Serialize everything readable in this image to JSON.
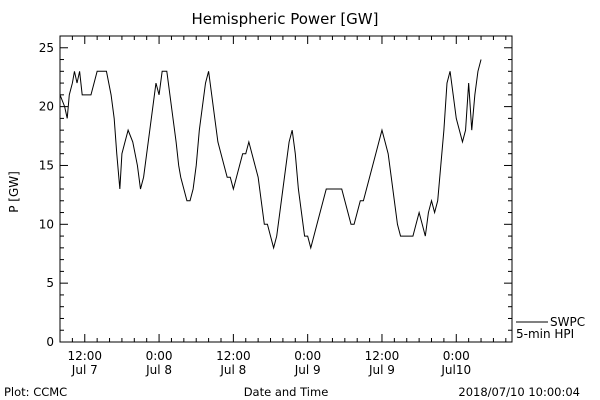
{
  "chart_data": {
    "type": "line",
    "title": "Hemispheric Power [GW]",
    "xlabel": "Date and Time",
    "ylabel": "P [GW]",
    "xlim": [
      "2018-07-07T08:00",
      "2018-07-10T09:00"
    ],
    "ylim": [
      0,
      26
    ],
    "y_ticks": [
      0,
      5,
      10,
      15,
      20,
      25
    ],
    "y_tick_labels": [
      "0",
      "5",
      "10",
      "15",
      "20",
      "25"
    ],
    "x_ticks": [
      {
        "time": "2018-07-07T12:00",
        "line1": "12:00",
        "line2": "Jul 7"
      },
      {
        "time": "2018-07-08T00:00",
        "line1": "0:00",
        "line2": "Jul 8"
      },
      {
        "time": "2018-07-08T12:00",
        "line1": "12:00",
        "line2": "Jul 8"
      },
      {
        "time": "2018-07-09T00:00",
        "line1": "0:00",
        "line2": "Jul 9"
      },
      {
        "time": "2018-07-09T12:00",
        "line1": "12:00",
        "line2": "Jul 9"
      },
      {
        "time": "2018-07-10T00:00",
        "line1": "0:00",
        "line2": "Jul10"
      }
    ],
    "grid": false,
    "legend_position": "right",
    "series": [
      {
        "name": "SWPC",
        "color": "#000000",
        "points": [
          [
            "2018-07-07T08:00",
            21
          ],
          [
            "2018-07-07T08:45",
            20
          ],
          [
            "2018-07-07T09:10",
            19
          ],
          [
            "2018-07-07T09:30",
            21
          ],
          [
            "2018-07-07T10:00",
            22
          ],
          [
            "2018-07-07T10:20",
            23
          ],
          [
            "2018-07-07T10:45",
            22
          ],
          [
            "2018-07-07T11:10",
            23
          ],
          [
            "2018-07-07T11:35",
            21
          ],
          [
            "2018-07-07T13:00",
            21
          ],
          [
            "2018-07-07T13:30",
            22
          ],
          [
            "2018-07-07T14:00",
            23
          ],
          [
            "2018-07-07T15:30",
            23
          ],
          [
            "2018-07-07T16:15",
            21
          ],
          [
            "2018-07-07T16:45",
            19
          ],
          [
            "2018-07-07T17:10",
            16
          ],
          [
            "2018-07-07T17:40",
            13
          ],
          [
            "2018-07-07T18:00",
            16
          ],
          [
            "2018-07-07T18:30",
            17
          ],
          [
            "2018-07-07T19:00",
            18
          ],
          [
            "2018-07-07T19:45",
            17
          ],
          [
            "2018-07-07T20:30",
            15
          ],
          [
            "2018-07-07T21:00",
            13
          ],
          [
            "2018-07-07T21:30",
            14
          ],
          [
            "2018-07-07T22:00",
            16
          ],
          [
            "2018-07-07T22:30",
            18
          ],
          [
            "2018-07-07T23:00",
            20
          ],
          [
            "2018-07-07T23:30",
            22
          ],
          [
            "2018-07-08T00:00",
            21
          ],
          [
            "2018-07-08T00:30",
            23
          ],
          [
            "2018-07-08T01:15",
            23
          ],
          [
            "2018-07-08T01:45",
            21
          ],
          [
            "2018-07-08T02:15",
            19
          ],
          [
            "2018-07-08T02:45",
            17
          ],
          [
            "2018-07-08T03:10",
            15
          ],
          [
            "2018-07-08T03:30",
            14
          ],
          [
            "2018-07-08T04:00",
            13
          ],
          [
            "2018-07-08T04:30",
            12
          ],
          [
            "2018-07-08T05:00",
            12
          ],
          [
            "2018-07-08T05:30",
            13
          ],
          [
            "2018-07-08T06:00",
            15
          ],
          [
            "2018-07-08T06:30",
            18
          ],
          [
            "2018-07-08T07:00",
            20
          ],
          [
            "2018-07-08T07:30",
            22
          ],
          [
            "2018-07-08T08:00",
            23
          ],
          [
            "2018-07-08T08:30",
            21
          ],
          [
            "2018-07-08T09:00",
            19
          ],
          [
            "2018-07-08T09:30",
            17
          ],
          [
            "2018-07-08T10:00",
            16
          ],
          [
            "2018-07-08T10:30",
            15
          ],
          [
            "2018-07-08T11:00",
            14
          ],
          [
            "2018-07-08T11:30",
            14
          ],
          [
            "2018-07-08T12:00",
            13
          ],
          [
            "2018-07-08T12:30",
            14
          ],
          [
            "2018-07-08T13:00",
            15
          ],
          [
            "2018-07-08T13:30",
            16
          ],
          [
            "2018-07-08T14:00",
            16
          ],
          [
            "2018-07-08T14:30",
            17
          ],
          [
            "2018-07-08T15:00",
            16
          ],
          [
            "2018-07-08T15:30",
            15
          ],
          [
            "2018-07-08T16:00",
            14
          ],
          [
            "2018-07-08T16:30",
            12
          ],
          [
            "2018-07-08T17:00",
            10
          ],
          [
            "2018-07-08T17:30",
            10
          ],
          [
            "2018-07-08T18:00",
            9
          ],
          [
            "2018-07-08T18:30",
            8
          ],
          [
            "2018-07-08T19:00",
            9
          ],
          [
            "2018-07-08T19:30",
            11
          ],
          [
            "2018-07-08T20:00",
            13
          ],
          [
            "2018-07-08T20:30",
            15
          ],
          [
            "2018-07-08T21:00",
            17
          ],
          [
            "2018-07-08T21:30",
            18
          ],
          [
            "2018-07-08T22:00",
            16
          ],
          [
            "2018-07-08T22:30",
            13
          ],
          [
            "2018-07-08T23:00",
            11
          ],
          [
            "2018-07-08T23:30",
            9
          ],
          [
            "2018-07-09T00:00",
            9
          ],
          [
            "2018-07-09T00:30",
            8
          ],
          [
            "2018-07-09T01:00",
            9
          ],
          [
            "2018-07-09T01:30",
            10
          ],
          [
            "2018-07-09T02:00",
            11
          ],
          [
            "2018-07-09T02:30",
            12
          ],
          [
            "2018-07-09T03:00",
            13
          ],
          [
            "2018-07-09T03:30",
            13
          ],
          [
            "2018-07-09T04:30",
            13
          ],
          [
            "2018-07-09T05:30",
            13
          ],
          [
            "2018-07-09T06:00",
            12
          ],
          [
            "2018-07-09T06:30",
            11
          ],
          [
            "2018-07-09T07:00",
            10
          ],
          [
            "2018-07-09T07:30",
            10
          ],
          [
            "2018-07-09T08:00",
            11
          ],
          [
            "2018-07-09T08:30",
            12
          ],
          [
            "2018-07-09T09:00",
            12
          ],
          [
            "2018-07-09T09:30",
            13
          ],
          [
            "2018-07-09T10:00",
            14
          ],
          [
            "2018-07-09T10:30",
            15
          ],
          [
            "2018-07-09T11:00",
            16
          ],
          [
            "2018-07-09T11:30",
            17
          ],
          [
            "2018-07-09T12:00",
            18
          ],
          [
            "2018-07-09T12:30",
            17
          ],
          [
            "2018-07-09T13:00",
            16
          ],
          [
            "2018-07-09T13:30",
            14
          ],
          [
            "2018-07-09T14:00",
            12
          ],
          [
            "2018-07-09T14:30",
            10
          ],
          [
            "2018-07-09T15:00",
            9
          ],
          [
            "2018-07-09T17:00",
            9
          ],
          [
            "2018-07-09T17:30",
            10
          ],
          [
            "2018-07-09T18:00",
            11
          ],
          [
            "2018-07-09T18:30",
            10
          ],
          [
            "2018-07-09T19:00",
            9
          ],
          [
            "2018-07-09T19:30",
            11
          ],
          [
            "2018-07-09T20:00",
            12
          ],
          [
            "2018-07-09T20:30",
            11
          ],
          [
            "2018-07-09T21:00",
            12
          ],
          [
            "2018-07-09T21:30",
            15
          ],
          [
            "2018-07-09T22:00",
            18
          ],
          [
            "2018-07-09T22:30",
            22
          ],
          [
            "2018-07-09T23:00",
            23
          ],
          [
            "2018-07-09T23:30",
            21
          ],
          [
            "2018-07-10T00:00",
            19
          ],
          [
            "2018-07-10T00:30",
            18
          ],
          [
            "2018-07-10T01:00",
            17
          ],
          [
            "2018-07-10T01:30",
            18
          ],
          [
            "2018-07-10T02:00",
            22
          ],
          [
            "2018-07-10T02:30",
            18
          ],
          [
            "2018-07-10T03:00",
            21
          ],
          [
            "2018-07-10T03:30",
            23
          ],
          [
            "2018-07-10T04:00",
            24
          ]
        ]
      }
    ],
    "legend": {
      "swpc_label": "SWPC",
      "hpi_label": "5-min HPI"
    }
  },
  "footer": {
    "left": "Plot: CCMC",
    "center": "Date and Time",
    "right": "2018/07/10 10:00:04"
  }
}
